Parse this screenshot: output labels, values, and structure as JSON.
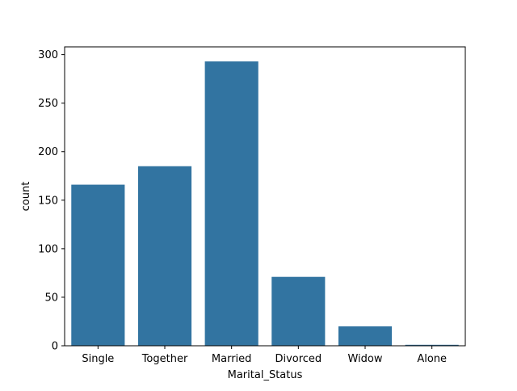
{
  "chart_data": {
    "type": "bar",
    "categories": [
      "Single",
      "Together",
      "Married",
      "Divorced",
      "Widow",
      "Alone"
    ],
    "values": [
      166,
      185,
      293,
      71,
      20,
      1
    ],
    "xlabel": "Marital_Status",
    "ylabel": "count",
    "ylim": [
      0,
      308
    ],
    "yticks": [
      0,
      50,
      100,
      150,
      200,
      250,
      300
    ],
    "grid": false,
    "bar_color": "#3274a1"
  }
}
